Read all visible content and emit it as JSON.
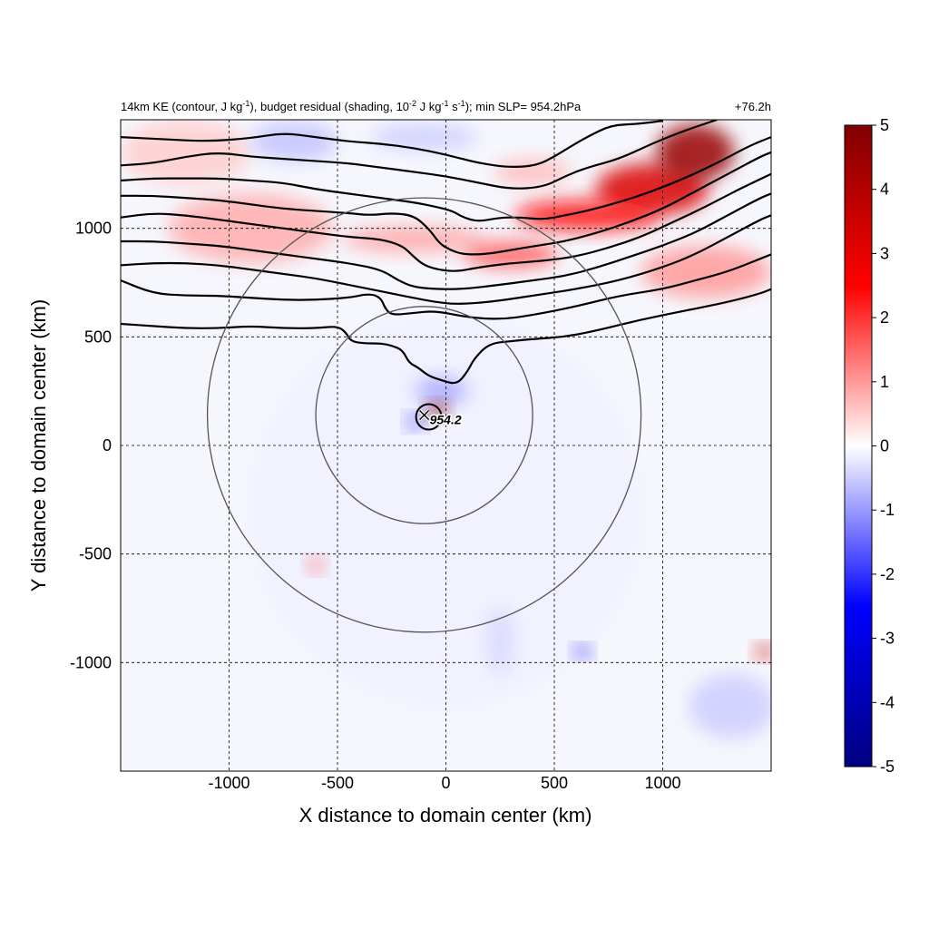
{
  "figure": {
    "title_html": "14km KE (contour, J kg⁻¹), budget residual (shading, 10⁻² J kg⁻¹ s⁻¹); min SLP= 954.2hPa",
    "title_parts": {
      "p1": "14km KE (contour, J kg",
      "sup1": "-1",
      "p2": "), budget residual (shading, 10",
      "sup2": "-2",
      "p3": " J kg",
      "sup3": "-1",
      "p4": " s",
      "sup4": "-1",
      "p5": "); min SLP= 954.2hPa"
    },
    "lead_time": "+76.2h"
  },
  "chart_data": {
    "type": "heatmap",
    "xlabel": "X distance to domain center (km)",
    "ylabel": "Y distance to domain center (km)",
    "xlim": [
      -1500,
      1500
    ],
    "ylim": [
      -1500,
      1500
    ],
    "xticks": [
      -1000,
      -500,
      0,
      500,
      1000
    ],
    "yticks": [
      -1000,
      -500,
      0,
      500,
      1000
    ],
    "xtick_labels": [
      "-1000",
      "-500",
      "0",
      "500",
      "1000"
    ],
    "ytick_labels": [
      "-1000",
      "-500",
      "0",
      "500",
      "1000"
    ],
    "grid": true,
    "colorbar": {
      "min": -5,
      "max": 5,
      "ticks": [
        5,
        4,
        3,
        2,
        1,
        0,
        -1,
        -2,
        -3,
        -4,
        -5
      ],
      "tick_labels": [
        "5",
        "4",
        "3",
        "2",
        "1",
        "0",
        "-1",
        "-2",
        "-3",
        "-4",
        "-5"
      ],
      "colors": [
        "#000080",
        "#0000ff",
        "#ffffff",
        "#ff0000",
        "#800000"
      ]
    },
    "storm_center": {
      "x": -100,
      "y": 140,
      "label": "954.2"
    },
    "rings_km": [
      500,
      1000
    ],
    "ke_contours": [
      [
        [
          -1500,
          1420
        ],
        [
          -1300,
          1410
        ],
        [
          -1100,
          1400
        ],
        [
          -900,
          1415
        ],
        [
          -750,
          1440
        ],
        [
          -600,
          1420
        ],
        [
          -450,
          1400
        ],
        [
          -300,
          1390
        ],
        [
          -150,
          1370
        ],
        [
          0,
          1340
        ],
        [
          150,
          1300
        ],
        [
          300,
          1280
        ],
        [
          420,
          1290
        ],
        [
          500,
          1330
        ],
        [
          580,
          1380
        ],
        [
          650,
          1420
        ],
        [
          760,
          1475
        ],
        [
          880,
          1480
        ],
        [
          1000,
          1495
        ]
      ],
      [
        [
          -1500,
          1290
        ],
        [
          -1350,
          1300
        ],
        [
          -1200,
          1330
        ],
        [
          -1050,
          1350
        ],
        [
          -900,
          1330
        ],
        [
          -750,
          1320
        ],
        [
          -600,
          1310
        ],
        [
          -450,
          1300
        ],
        [
          -300,
          1280
        ],
        [
          -150,
          1260
        ],
        [
          0,
          1240
        ],
        [
          150,
          1210
        ],
        [
          300,
          1180
        ],
        [
          450,
          1190
        ],
        [
          550,
          1240
        ],
        [
          650,
          1280
        ],
        [
          800,
          1320
        ],
        [
          950,
          1390
        ],
        [
          1100,
          1450
        ],
        [
          1250,
          1500
        ]
      ],
      [
        [
          -1500,
          1220
        ],
        [
          -1350,
          1230
        ],
        [
          -1200,
          1230
        ],
        [
          -1050,
          1230
        ],
        [
          -900,
          1220
        ],
        [
          -750,
          1210
        ],
        [
          -600,
          1180
        ],
        [
          -450,
          1160
        ],
        [
          -300,
          1140
        ],
        [
          -150,
          1120
        ],
        [
          -50,
          1100
        ],
        [
          30,
          1080
        ],
        [
          80,
          1050
        ],
        [
          150,
          1030
        ],
        [
          250,
          1050
        ],
        [
          350,
          1050
        ],
        [
          450,
          1040
        ],
        [
          550,
          1060
        ],
        [
          650,
          1080
        ],
        [
          800,
          1120
        ],
        [
          950,
          1170
        ],
        [
          1100,
          1230
        ],
        [
          1250,
          1300
        ],
        [
          1400,
          1380
        ],
        [
          1500,
          1420
        ]
      ],
      [
        [
          -1500,
          1150
        ],
        [
          -1350,
          1150
        ],
        [
          -1200,
          1140
        ],
        [
          -1050,
          1130
        ],
        [
          -900,
          1110
        ],
        [
          -750,
          1090
        ],
        [
          -600,
          1080
        ],
        [
          -450,
          1070
        ],
        [
          -350,
          1060
        ],
        [
          -250,
          1070
        ],
        [
          -150,
          1060
        ],
        [
          -80,
          1000
        ],
        [
          -30,
          930
        ],
        [
          20,
          900
        ],
        [
          80,
          880
        ],
        [
          180,
          880
        ],
        [
          300,
          900
        ],
        [
          420,
          920
        ],
        [
          550,
          940
        ],
        [
          700,
          980
        ],
        [
          850,
          1030
        ],
        [
          1000,
          1090
        ],
        [
          1150,
          1170
        ],
        [
          1300,
          1250
        ],
        [
          1450,
          1330
        ],
        [
          1500,
          1350
        ]
      ],
      [
        [
          -1500,
          1050
        ],
        [
          -1350,
          1070
        ],
        [
          -1200,
          1060
        ],
        [
          -1050,
          1040
        ],
        [
          -900,
          1020
        ],
        [
          -750,
          1000
        ],
        [
          -600,
          980
        ],
        [
          -450,
          960
        ],
        [
          -300,
          950
        ],
        [
          -200,
          920
        ],
        [
          -150,
          870
        ],
        [
          -100,
          830
        ],
        [
          -40,
          810
        ],
        [
          50,
          800
        ],
        [
          150,
          820
        ],
        [
          300,
          840
        ],
        [
          450,
          850
        ],
        [
          600,
          870
        ],
        [
          750,
          910
        ],
        [
          900,
          960
        ],
        [
          1050,
          1030
        ],
        [
          1200,
          1100
        ],
        [
          1350,
          1180
        ],
        [
          1500,
          1250
        ]
      ],
      [
        [
          -1500,
          940
        ],
        [
          -1350,
          940
        ],
        [
          -1200,
          930
        ],
        [
          -1050,
          920
        ],
        [
          -900,
          900
        ],
        [
          -750,
          880
        ],
        [
          -600,
          860
        ],
        [
          -450,
          840
        ],
        [
          -300,
          810
        ],
        [
          -220,
          760
        ],
        [
          -150,
          730
        ],
        [
          -50,
          720
        ],
        [
          80,
          720
        ],
        [
          250,
          740
        ],
        [
          400,
          760
        ],
        [
          550,
          780
        ],
        [
          700,
          820
        ],
        [
          850,
          870
        ],
        [
          1000,
          920
        ],
        [
          1150,
          980
        ],
        [
          1300,
          1060
        ],
        [
          1450,
          1140
        ],
        [
          1500,
          1160
        ]
      ],
      [
        [
          -1500,
          830
        ],
        [
          -1350,
          840
        ],
        [
          -1200,
          840
        ],
        [
          -1050,
          830
        ],
        [
          -900,
          810
        ],
        [
          -750,
          790
        ],
        [
          -600,
          770
        ],
        [
          -450,
          740
        ],
        [
          -350,
          720
        ],
        [
          -250,
          700
        ],
        [
          -150,
          680
        ],
        [
          -50,
          660
        ],
        [
          50,
          650
        ],
        [
          200,
          660
        ],
        [
          400,
          690
        ],
        [
          600,
          720
        ],
        [
          800,
          760
        ],
        [
          1000,
          820
        ],
        [
          1150,
          880
        ],
        [
          1300,
          960
        ],
        [
          1450,
          1040
        ],
        [
          1500,
          1060
        ]
      ],
      [
        [
          -1500,
          760
        ],
        [
          -1350,
          700
        ],
        [
          -1200,
          690
        ],
        [
          -1050,
          690
        ],
        [
          -900,
          680
        ],
        [
          -750,
          670
        ],
        [
          -600,
          670
        ],
        [
          -450,
          680
        ],
        [
          -350,
          700
        ],
        [
          -300,
          680
        ],
        [
          -280,
          630
        ],
        [
          -250,
          600
        ],
        [
          -150,
          610
        ],
        [
          -50,
          620
        ],
        [
          100,
          590
        ],
        [
          250,
          580
        ],
        [
          400,
          600
        ],
        [
          600,
          640
        ],
        [
          800,
          690
        ],
        [
          1000,
          720
        ],
        [
          1150,
          760
        ],
        [
          1300,
          800
        ],
        [
          1450,
          860
        ],
        [
          1500,
          880
        ]
      ],
      [
        [
          -1500,
          560
        ],
        [
          -1350,
          550
        ],
        [
          -1200,
          540
        ],
        [
          -1050,
          540
        ],
        [
          -900,
          550
        ],
        [
          -750,
          540
        ],
        [
          -600,
          540
        ],
        [
          -500,
          550
        ],
        [
          -460,
          520
        ],
        [
          -440,
          480
        ],
        [
          -380,
          470
        ],
        [
          -300,
          470
        ],
        [
          -250,
          460
        ],
        [
          -200,
          440
        ],
        [
          -170,
          380
        ],
        [
          -130,
          360
        ],
        [
          -80,
          320
        ],
        [
          -20,
          300
        ],
        [
          50,
          280
        ],
        [
          100,
          340
        ],
        [
          130,
          400
        ],
        [
          200,
          470
        ],
        [
          300,
          480
        ],
        [
          400,
          490
        ],
        [
          550,
          500
        ],
        [
          700,
          530
        ],
        [
          900,
          580
        ],
        [
          1100,
          620
        ],
        [
          1300,
          660
        ],
        [
          1450,
          700
        ],
        [
          1500,
          720
        ]
      ]
    ],
    "shading_blobs": [
      {
        "x": 1150,
        "y": 1350,
        "rx": 180,
        "ry": 130,
        "value": 4.5
      },
      {
        "x": 950,
        "y": 1180,
        "rx": 260,
        "ry": 120,
        "value": 3.2
      },
      {
        "x": 650,
        "y": 1060,
        "rx": 330,
        "ry": 70,
        "value": 2.4
      },
      {
        "x": 300,
        "y": 880,
        "rx": 220,
        "ry": 60,
        "value": 1.6
      },
      {
        "x": -150,
        "y": 950,
        "rx": 330,
        "ry": 60,
        "value": 0.9
      },
      {
        "x": -900,
        "y": 1000,
        "rx": 380,
        "ry": 160,
        "value": 0.8
      },
      {
        "x": -1200,
        "y": 1350,
        "rx": 300,
        "ry": 150,
        "value": 0.5
      },
      {
        "x": -700,
        "y": 1400,
        "rx": 200,
        "ry": 90,
        "value": -0.6
      },
      {
        "x": -100,
        "y": 1420,
        "rx": 250,
        "ry": 60,
        "value": -0.5
      },
      {
        "x": 1200,
        "y": 800,
        "rx": 300,
        "ry": 120,
        "value": 1.0
      },
      {
        "x": 400,
        "y": 1260,
        "rx": 180,
        "ry": 60,
        "value": 0.7
      },
      {
        "x": -40,
        "y": 160,
        "rx": 45,
        "ry": 35,
        "value": 4.8
      },
      {
        "x": -20,
        "y": 250,
        "rx": 120,
        "ry": 60,
        "value": -0.9
      },
      {
        "x": -140,
        "y": 110,
        "rx": 35,
        "ry": 30,
        "value": -2.0
      },
      {
        "x": -600,
        "y": -550,
        "rx": 35,
        "ry": 30,
        "value": 1.6
      },
      {
        "x": 630,
        "y": -950,
        "rx": 35,
        "ry": 25,
        "value": -2.8
      },
      {
        "x": 1470,
        "y": -950,
        "rx": 40,
        "ry": 30,
        "value": 3.5
      },
      {
        "x": 1320,
        "y": -1200,
        "rx": 200,
        "ry": 150,
        "value": -0.5
      },
      {
        "x": 250,
        "y": -900,
        "rx": 60,
        "ry": 150,
        "value": -0.4
      },
      {
        "x": 0,
        "y": -300,
        "rx": 900,
        "ry": 900,
        "value": -0.15
      }
    ]
  }
}
